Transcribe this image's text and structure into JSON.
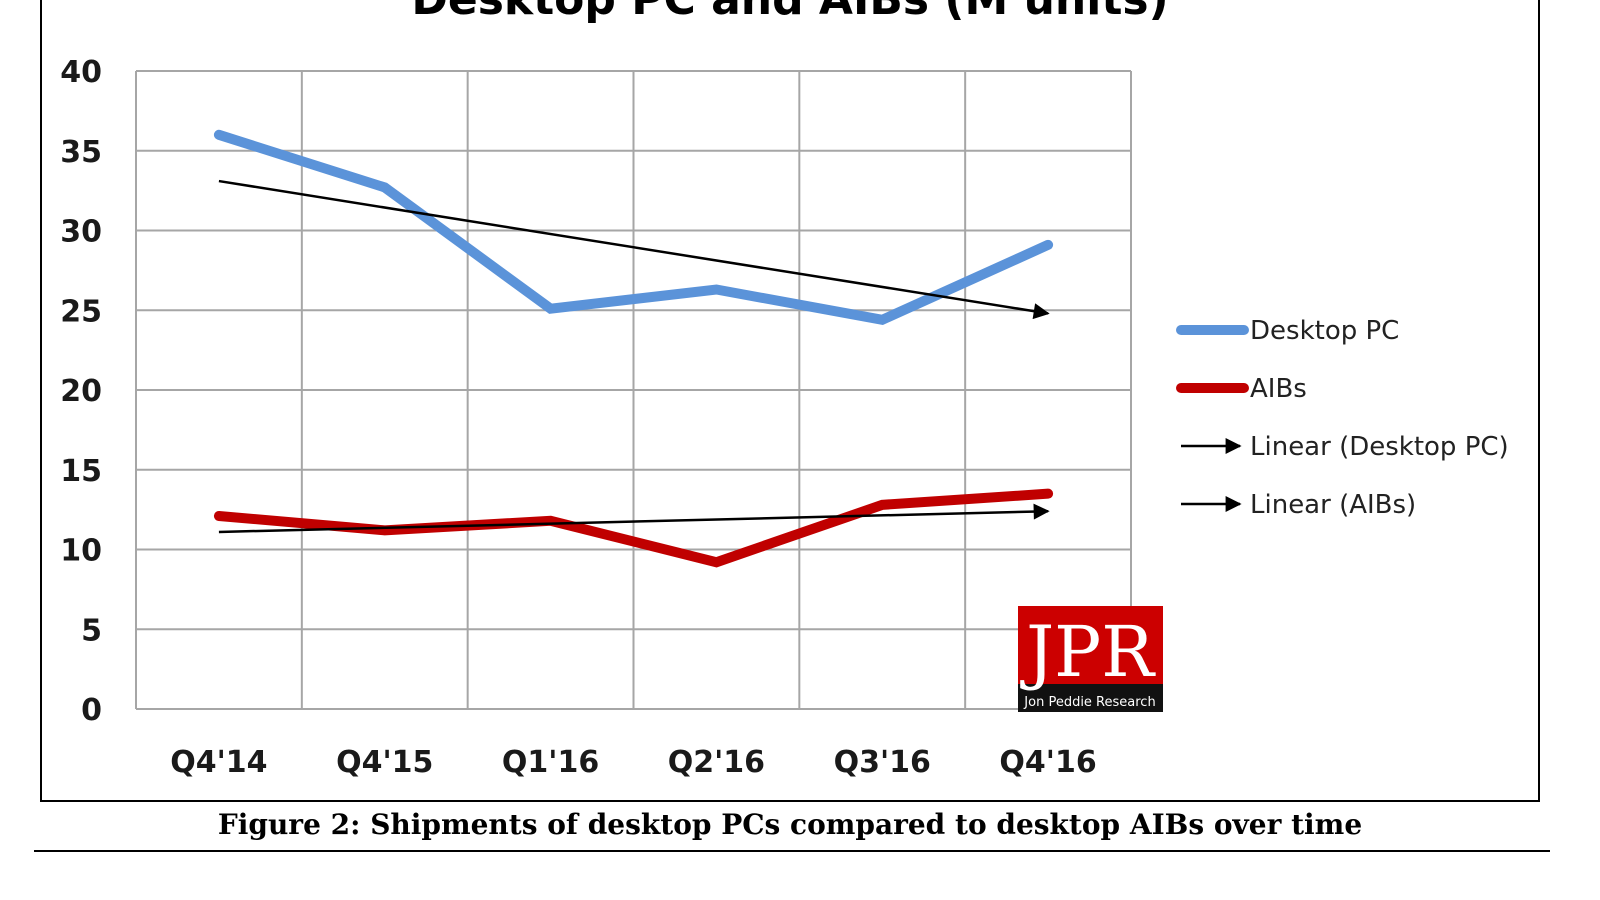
{
  "caption": "Figure 2: Shipments of desktop PCs compared to desktop AIBs over time",
  "logo": {
    "text": "JPR",
    "subtext": "Jon Peddie Research",
    "color": "#cc0000"
  },
  "chart_data": {
    "type": "line",
    "title": "Desktop PC and AIBs (M units)",
    "xlabel": "",
    "ylabel": "",
    "categories": [
      "Q4'14",
      "Q4'15",
      "Q1'16",
      "Q2'16",
      "Q3'16",
      "Q4'16"
    ],
    "ylim": [
      0,
      40
    ],
    "yticks": [
      0,
      5,
      10,
      15,
      20,
      25,
      30,
      35,
      40
    ],
    "grid": true,
    "legend_position": "right",
    "series": [
      {
        "name": "Desktop PC",
        "values": [
          36.0,
          32.7,
          25.1,
          26.3,
          24.4,
          29.1
        ],
        "color": "#5b93d9"
      },
      {
        "name": "AIBs",
        "values": [
          12.1,
          11.2,
          11.8,
          9.2,
          12.8,
          13.5
        ],
        "color": "#c00000"
      }
    ],
    "trendlines": [
      {
        "name": "Linear (Desktop PC)",
        "of": "Desktop PC",
        "values": [
          33.1,
          24.8
        ],
        "color": "#000000"
      },
      {
        "name": "Linear (AIBs)",
        "of": "AIBs",
        "values": [
          11.1,
          12.4
        ],
        "color": "#000000"
      }
    ]
  }
}
